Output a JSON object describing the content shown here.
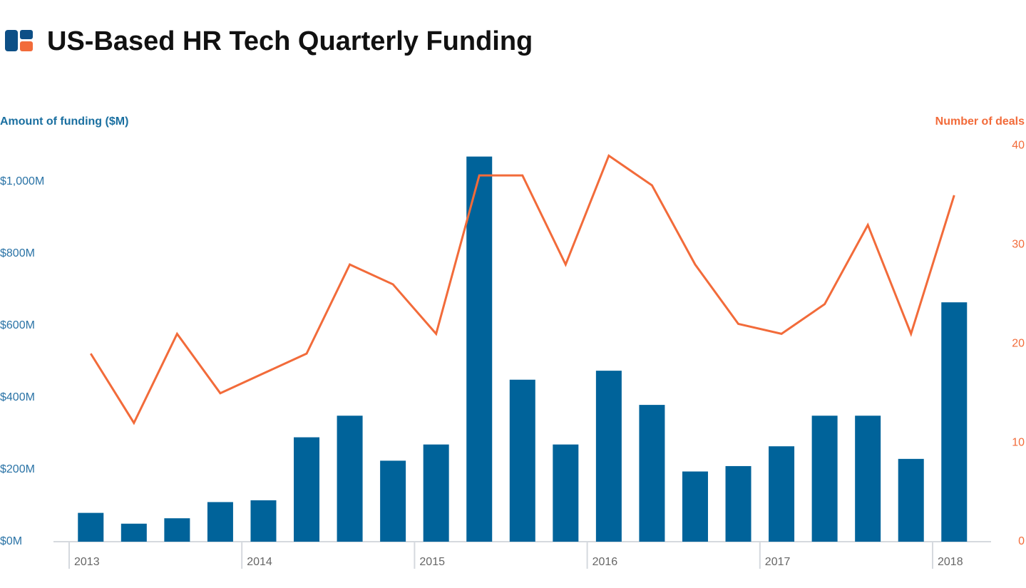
{
  "chart_data": {
    "type": "bar-line",
    "title": "US-Based HR Tech Quarterly Funding",
    "categories": [
      "2013",
      null,
      null,
      null,
      "2014",
      null,
      null,
      null,
      "2015",
      null,
      null,
      null,
      "2016",
      null,
      null,
      null,
      "2017",
      null,
      null,
      null,
      "2018"
    ],
    "series": [
      {
        "name": "Amount of funding ($M)",
        "type": "bar",
        "color": "#00639a",
        "values": [
          80,
          50,
          65,
          110,
          115,
          290,
          350,
          225,
          270,
          1070,
          450,
          270,
          475,
          380,
          195,
          210,
          265,
          350,
          350,
          230,
          665
        ]
      },
      {
        "name": "Number of deals",
        "type": "line",
        "axis": "y2",
        "color": "#f26b3a",
        "values": [
          19,
          12,
          21,
          15,
          17,
          19,
          28,
          26,
          21,
          37,
          37,
          28,
          39,
          36,
          28,
          22,
          21,
          24,
          32,
          21,
          35
        ]
      }
    ],
    "ylim": [
      0,
      1100
    ],
    "yticks": [
      {
        "value": 0,
        "label": "$0M"
      },
      {
        "value": 200,
        "label": "$200M"
      },
      {
        "value": 400,
        "label": "$400M"
      },
      {
        "value": 600,
        "label": "$600M"
      },
      {
        "value": 800,
        "label": "$800M"
      },
      {
        "value": 1000,
        "label": "$1,000M"
      }
    ],
    "y2lim": [
      0,
      40
    ],
    "y2ticks": [
      0,
      10,
      20,
      30,
      40
    ],
    "grid": false
  }
}
